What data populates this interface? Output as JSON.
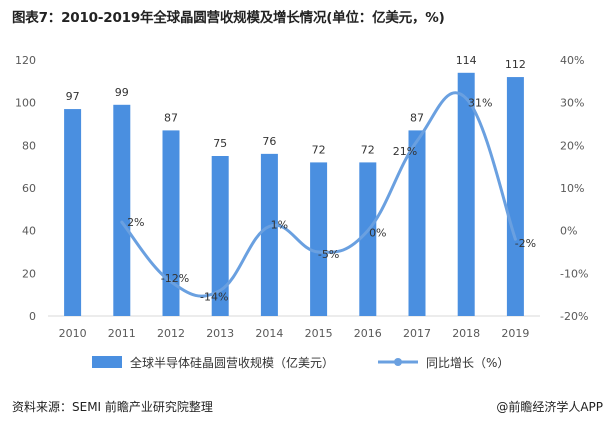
{
  "chart_data": {
    "type": "bar+line",
    "title": "图表7：2010-2019年全球晶圆营收规模及增长情况(单位：亿美元，%)",
    "categories": [
      "2010",
      "2011",
      "2012",
      "2013",
      "2014",
      "2015",
      "2016",
      "2017",
      "2018",
      "2019"
    ],
    "series": [
      {
        "name": "全球半导体硅晶圆营收规模（亿美元）",
        "type": "bar",
        "axis": "left",
        "values": [
          97,
          99,
          87,
          75,
          76,
          72,
          72,
          87,
          114,
          112
        ],
        "labels": [
          "97",
          "99",
          "87",
          "75",
          "76",
          "72",
          "72",
          "87",
          "114",
          "112"
        ]
      },
      {
        "name": "同比增长（%）",
        "type": "line",
        "axis": "right",
        "values": [
          null,
          2,
          -12,
          -14,
          1,
          -5,
          0,
          21,
          31,
          -2
        ],
        "labels": [
          "",
          "2%",
          "-12%",
          "-14%",
          "1%",
          "-5%",
          "0%",
          "21%",
          "31%",
          "-2%"
        ]
      }
    ],
    "y_left": {
      "min": 0,
      "max": 120,
      "step": 20,
      "ticks": [
        "0",
        "20",
        "40",
        "60",
        "80",
        "100",
        "120"
      ]
    },
    "y_right": {
      "min": -20,
      "max": 40,
      "step": 10,
      "ticks": [
        "-20%",
        "-10%",
        "0%",
        "10%",
        "20%",
        "30%",
        "40%"
      ]
    },
    "colors": {
      "bar": "#4a8fe0",
      "line": "#6aa0e0",
      "axis": "#d9d9d9"
    },
    "legend_position": "bottom",
    "grid": false
  },
  "footer": {
    "source": "资料来源：SEMI 前瞻产业研究院整理",
    "brand": "@前瞻经济学人APP"
  }
}
